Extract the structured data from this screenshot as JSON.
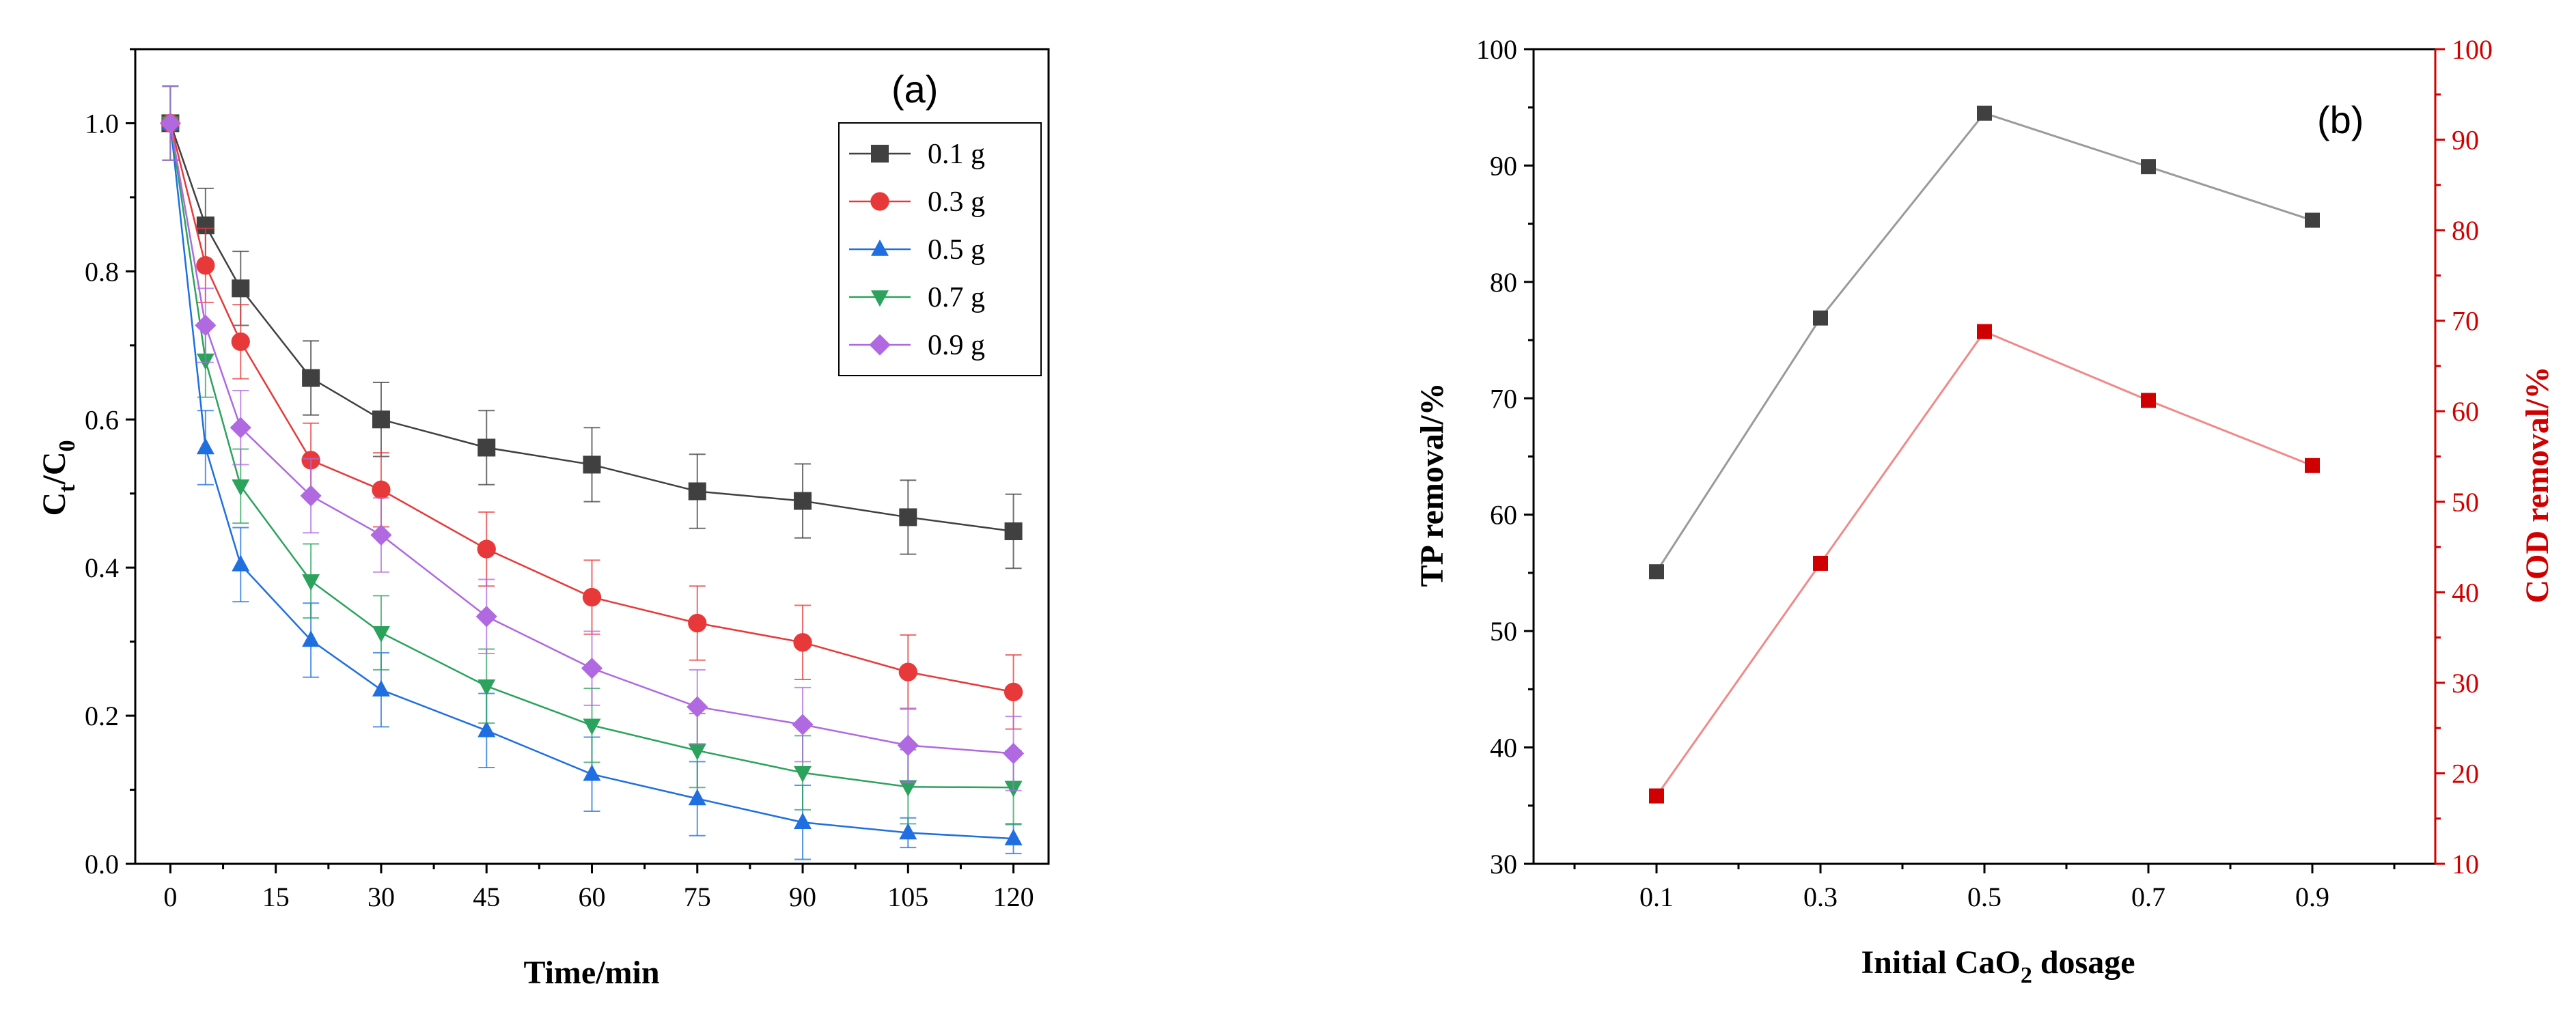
{
  "chart_data": [
    {
      "panel": "(a)",
      "type": "line",
      "title": "",
      "xlabel": "Time/min",
      "ylabel_main": "C",
      "ylabel_sub1": "t",
      "ylabel_mid": "/C",
      "ylabel_sub2": "0",
      "xlim": [
        -5,
        125
      ],
      "ylim": [
        0,
        1.1
      ],
      "x_ticks": [
        0,
        15,
        30,
        45,
        60,
        75,
        90,
        105,
        120
      ],
      "y_ticks": [
        0.0,
        0.2,
        0.4,
        0.6,
        0.8,
        1.0
      ],
      "y_tick_labels": [
        "0.0",
        "0.2",
        "0.4",
        "0.6",
        "0.8",
        "1.0"
      ],
      "legend_position": "top-right",
      "x": [
        0,
        5,
        10,
        20,
        30,
        45,
        60,
        75,
        90,
        105,
        120
      ],
      "series": [
        {
          "name": "0.1 g",
          "color": "#404040",
          "marker": "square",
          "values": [
            1.0,
            0.862,
            0.777,
            0.656,
            0.6,
            0.562,
            0.539,
            0.503,
            0.49,
            0.468,
            0.449
          ],
          "errors": [
            0.05,
            0.05,
            0.05,
            0.05,
            0.05,
            0.05,
            0.05,
            0.05,
            0.05,
            0.05,
            0.05
          ]
        },
        {
          "name": "0.3 g",
          "color": "#e8393a",
          "marker": "circle",
          "values": [
            1.0,
            0.808,
            0.705,
            0.545,
            0.505,
            0.425,
            0.36,
            0.325,
            0.299,
            0.259,
            0.232
          ],
          "errors": [
            0.05,
            0.05,
            0.05,
            0.05,
            0.05,
            0.05,
            0.05,
            0.05,
            0.05,
            0.05,
            0.05
          ]
        },
        {
          "name": "0.5 g",
          "color": "#1f6fe0",
          "marker": "triangle-up",
          "values": [
            1.0,
            0.562,
            0.404,
            0.302,
            0.235,
            0.18,
            0.121,
            0.088,
            0.056,
            0.042,
            0.034
          ],
          "errors": [
            0.05,
            0.05,
            0.05,
            0.05,
            0.05,
            0.05,
            0.05,
            0.05,
            0.05,
            0.02,
            0.02
          ]
        },
        {
          "name": "0.7 g",
          "color": "#2ca35c",
          "marker": "triangle-down",
          "values": [
            1.0,
            0.68,
            0.51,
            0.382,
            0.312,
            0.24,
            0.187,
            0.153,
            0.123,
            0.104,
            0.103
          ],
          "errors": [
            0.05,
            0.05,
            0.05,
            0.05,
            0.05,
            0.05,
            0.05,
            0.05,
            0.05,
            0.05,
            0.05
          ]
        },
        {
          "name": "0.9 g",
          "color": "#b069e0",
          "marker": "diamond",
          "values": [
            1.0,
            0.727,
            0.589,
            0.497,
            0.444,
            0.334,
            0.264,
            0.212,
            0.188,
            0.16,
            0.149
          ],
          "errors": [
            0.05,
            0.05,
            0.05,
            0.05,
            0.05,
            0.05,
            0.05,
            0.05,
            0.05,
            0.05,
            0.05
          ]
        }
      ]
    },
    {
      "panel": "(b)",
      "type": "line",
      "title": "",
      "xlabel_main": "Initial CaO",
      "xlabel_sub": "2",
      "xlabel_tail": " dosage",
      "categories": [
        "0.1",
        "0.3",
        "0.5",
        "0.7",
        "0.9"
      ],
      "x_values": [
        0.1,
        0.3,
        0.5,
        0.7,
        0.9
      ],
      "xlim": [
        -0.05,
        1.05
      ],
      "left_axis": {
        "label": "TP removal/%",
        "ylim": [
          30,
          100
        ],
        "ticks": [
          30,
          40,
          50,
          60,
          70,
          80,
          90,
          100
        ],
        "color": "#000000"
      },
      "right_axis": {
        "label": "COD removal/%",
        "ylim": [
          10,
          100
        ],
        "ticks": [
          10,
          20,
          30,
          40,
          50,
          60,
          70,
          80,
          90,
          100
        ],
        "color": "#d10000"
      },
      "series": [
        {
          "name": "TP removal/%",
          "axis": "left",
          "color": "#404040",
          "line_color": "#9a9a9a",
          "marker": "square",
          "values": [
            55.1,
            76.9,
            94.5,
            89.9,
            85.3
          ]
        },
        {
          "name": "COD removal/%",
          "axis": "right",
          "color": "#d10000",
          "line_color": "#f08a8a",
          "marker": "square",
          "values": [
            17.5,
            43.2,
            68.8,
            61.2,
            54.0
          ]
        }
      ]
    }
  ]
}
